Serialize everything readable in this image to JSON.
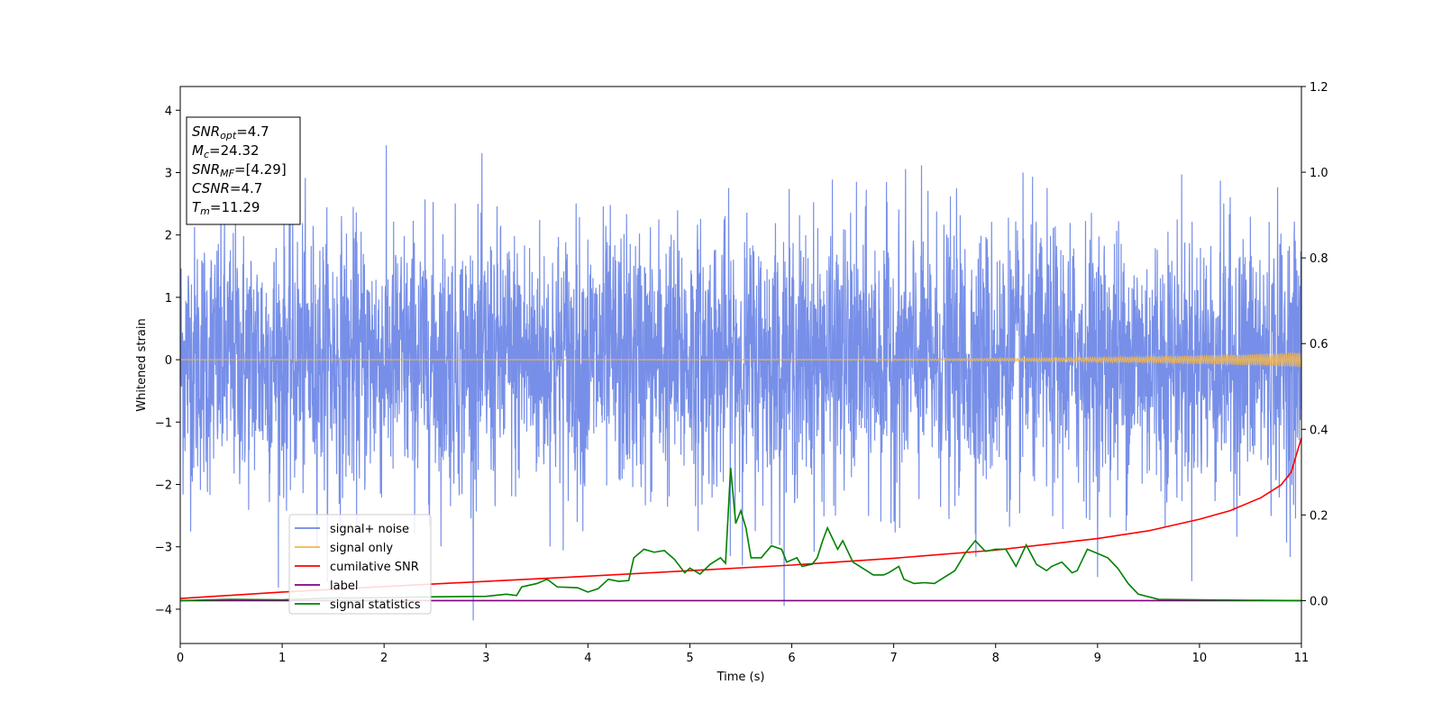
{
  "chart_data": {
    "type": "line",
    "title": "",
    "xlabel": "Time (s)",
    "ylabel": "Whitened strain",
    "xlim": [
      0,
      11
    ],
    "ylim": [
      -4.55,
      4.38
    ],
    "y2lim": [
      -0.1,
      1.2
    ],
    "x_ticks": [
      "0",
      "1",
      "2",
      "3",
      "4",
      "5",
      "6",
      "7",
      "8",
      "9",
      "10",
      "11"
    ],
    "y_ticks": [
      "−4",
      "−3",
      "−2",
      "−1",
      "0",
      "1",
      "2",
      "3",
      "4"
    ],
    "y2_ticks": [
      "0.0",
      "0.2",
      "0.4",
      "0.6",
      "0.8",
      "1.0",
      "1.2"
    ],
    "grid": false,
    "legend_position": "lower-left",
    "colors": {
      "signal_noise": "#6b86e6",
      "signal_only": "#f3b74d",
      "cumulative_snr": "#ff0000",
      "label": "#800080",
      "signal_statistics": "#008000"
    },
    "legend": [
      {
        "key": "signal_noise",
        "name": "signal+ noise"
      },
      {
        "key": "signal_only",
        "name": "signal only"
      },
      {
        "key": "cumulative_snr",
        "name": "cumilative SNR"
      },
      {
        "key": "label",
        "name": "label"
      },
      {
        "key": "signal_statistics",
        "name": "signal statistics"
      }
    ],
    "series": [
      {
        "key": "signal_noise",
        "name": "signal+ noise",
        "axis": "left",
        "description_range": [
          -4.18,
          3.96
        ],
        "samples": 4000,
        "sample_rate_hz": 363.6
      },
      {
        "key": "signal_only",
        "name": "signal only",
        "axis": "left",
        "start_amplitude": 0.003,
        "end_amplitude": 0.12
      },
      {
        "key": "cumulative_snr",
        "name": "cumilative SNR",
        "axis": "right",
        "x": [
          0,
          1,
          2,
          3,
          4,
          5,
          6,
          7,
          8,
          9,
          9.5,
          10,
          10.3,
          10.6,
          10.8,
          10.9,
          11
        ],
        "y": [
          0.005,
          0.02,
          0.033,
          0.045,
          0.057,
          0.07,
          0.083,
          0.099,
          0.118,
          0.145,
          0.163,
          0.19,
          0.21,
          0.24,
          0.27,
          0.3,
          0.38
        ]
      },
      {
        "key": "label",
        "name": "label",
        "axis": "right",
        "x": [
          0,
          11
        ],
        "y": [
          0.0,
          0.0
        ]
      },
      {
        "key": "signal_statistics",
        "name": "signal statistics",
        "axis": "right",
        "x": [
          0,
          0.5,
          1.0,
          1.5,
          2.0,
          2.5,
          3.0,
          3.2,
          3.3,
          3.35,
          3.5,
          3.6,
          3.7,
          3.9,
          4.0,
          4.1,
          4.2,
          4.3,
          4.4,
          4.45,
          4.55,
          4.65,
          4.75,
          4.85,
          4.95,
          5.0,
          5.1,
          5.2,
          5.3,
          5.35,
          5.4,
          5.45,
          5.5,
          5.55,
          5.6,
          5.7,
          5.8,
          5.9,
          5.95,
          6.05,
          6.1,
          6.2,
          6.25,
          6.3,
          6.35,
          6.45,
          6.5,
          6.6,
          6.7,
          6.8,
          6.9,
          6.95,
          7.05,
          7.1,
          7.2,
          7.3,
          7.4,
          7.5,
          7.6,
          7.7,
          7.8,
          7.9,
          8.0,
          8.1,
          8.2,
          8.3,
          8.4,
          8.5,
          8.55,
          8.65,
          8.75,
          8.8,
          8.9,
          9.0,
          9.1,
          9.2,
          9.3,
          9.4,
          9.6,
          10.0,
          10.5,
          11.0
        ],
        "y": [
          0.0,
          0.003,
          0.002,
          0.006,
          0.007,
          0.009,
          0.01,
          0.015,
          0.012,
          0.032,
          0.04,
          0.05,
          0.032,
          0.03,
          0.02,
          0.028,
          0.05,
          0.045,
          0.047,
          0.1,
          0.12,
          0.113,
          0.117,
          0.096,
          0.065,
          0.076,
          0.062,
          0.085,
          0.1,
          0.087,
          0.31,
          0.18,
          0.21,
          0.17,
          0.1,
          0.1,
          0.128,
          0.12,
          0.09,
          0.1,
          0.08,
          0.085,
          0.1,
          0.138,
          0.17,
          0.12,
          0.14,
          0.09,
          0.075,
          0.06,
          0.06,
          0.065,
          0.08,
          0.05,
          0.04,
          0.042,
          0.04,
          0.055,
          0.07,
          0.11,
          0.14,
          0.115,
          0.12,
          0.12,
          0.08,
          0.13,
          0.085,
          0.07,
          0.08,
          0.09,
          0.065,
          0.07,
          0.12,
          0.11,
          0.1,
          0.075,
          0.04,
          0.015,
          0.003,
          0.002,
          0.001,
          0.0
        ]
      }
    ],
    "annotation": [
      {
        "main": "SNR",
        "sub": "opt",
        "rest": "=4.7"
      },
      {
        "main": "M",
        "sub": "c",
        "rest": "=24.32"
      },
      {
        "main": "SNR",
        "sub": "MF",
        "rest": "=[4.29]"
      },
      {
        "main": "CSNR",
        "sub": "",
        "rest": "=4.7"
      },
      {
        "main": "T",
        "sub": "m",
        "rest": "=11.29"
      }
    ]
  }
}
